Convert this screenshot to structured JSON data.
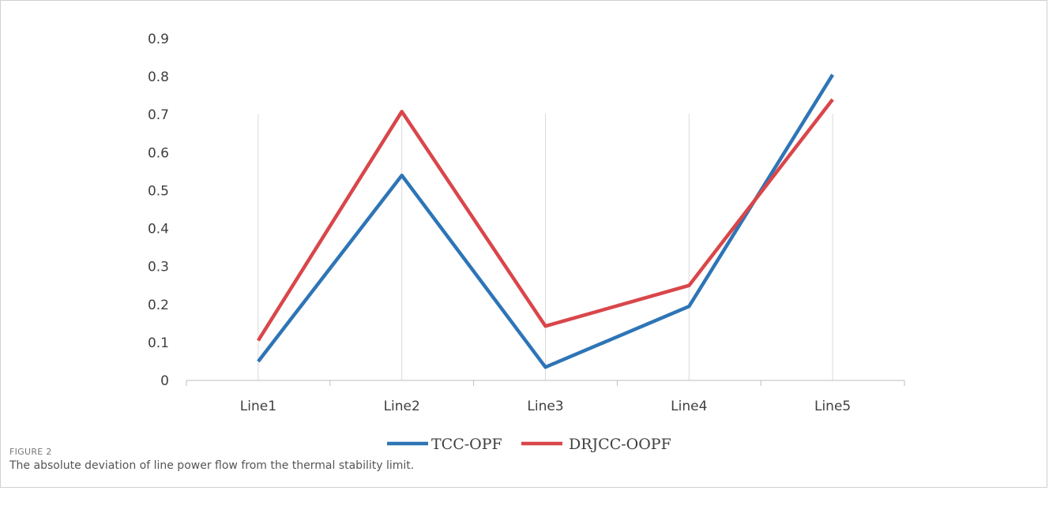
{
  "chart_data": {
    "type": "line",
    "categories": [
      "Line1",
      "Line2",
      "Line3",
      "Line4",
      "Line5"
    ],
    "series": [
      {
        "name": "TCC-OPF",
        "color": "#2E75B6",
        "values": [
          0.05,
          0.54,
          0.035,
          0.195,
          0.805
        ]
      },
      {
        "name": "DRJCC-OOPF",
        "color": "#D9464A",
        "values": [
          0.105,
          0.708,
          0.143,
          0.25,
          0.74
        ]
      }
    ],
    "ylim": [
      0,
      0.9
    ],
    "yticks": [
      "0",
      "0.1",
      "0.2",
      "0.3",
      "0.4",
      "0.5",
      "0.6",
      "0.7",
      "0.8",
      "0.9"
    ],
    "xlabel": "",
    "ylabel": "",
    "vertical_gridlines": true,
    "legend_position": "bottom-center"
  },
  "caption": {
    "label": "FIGURE 2",
    "text": "The absolute deviation of line power flow from the thermal stability limit."
  }
}
